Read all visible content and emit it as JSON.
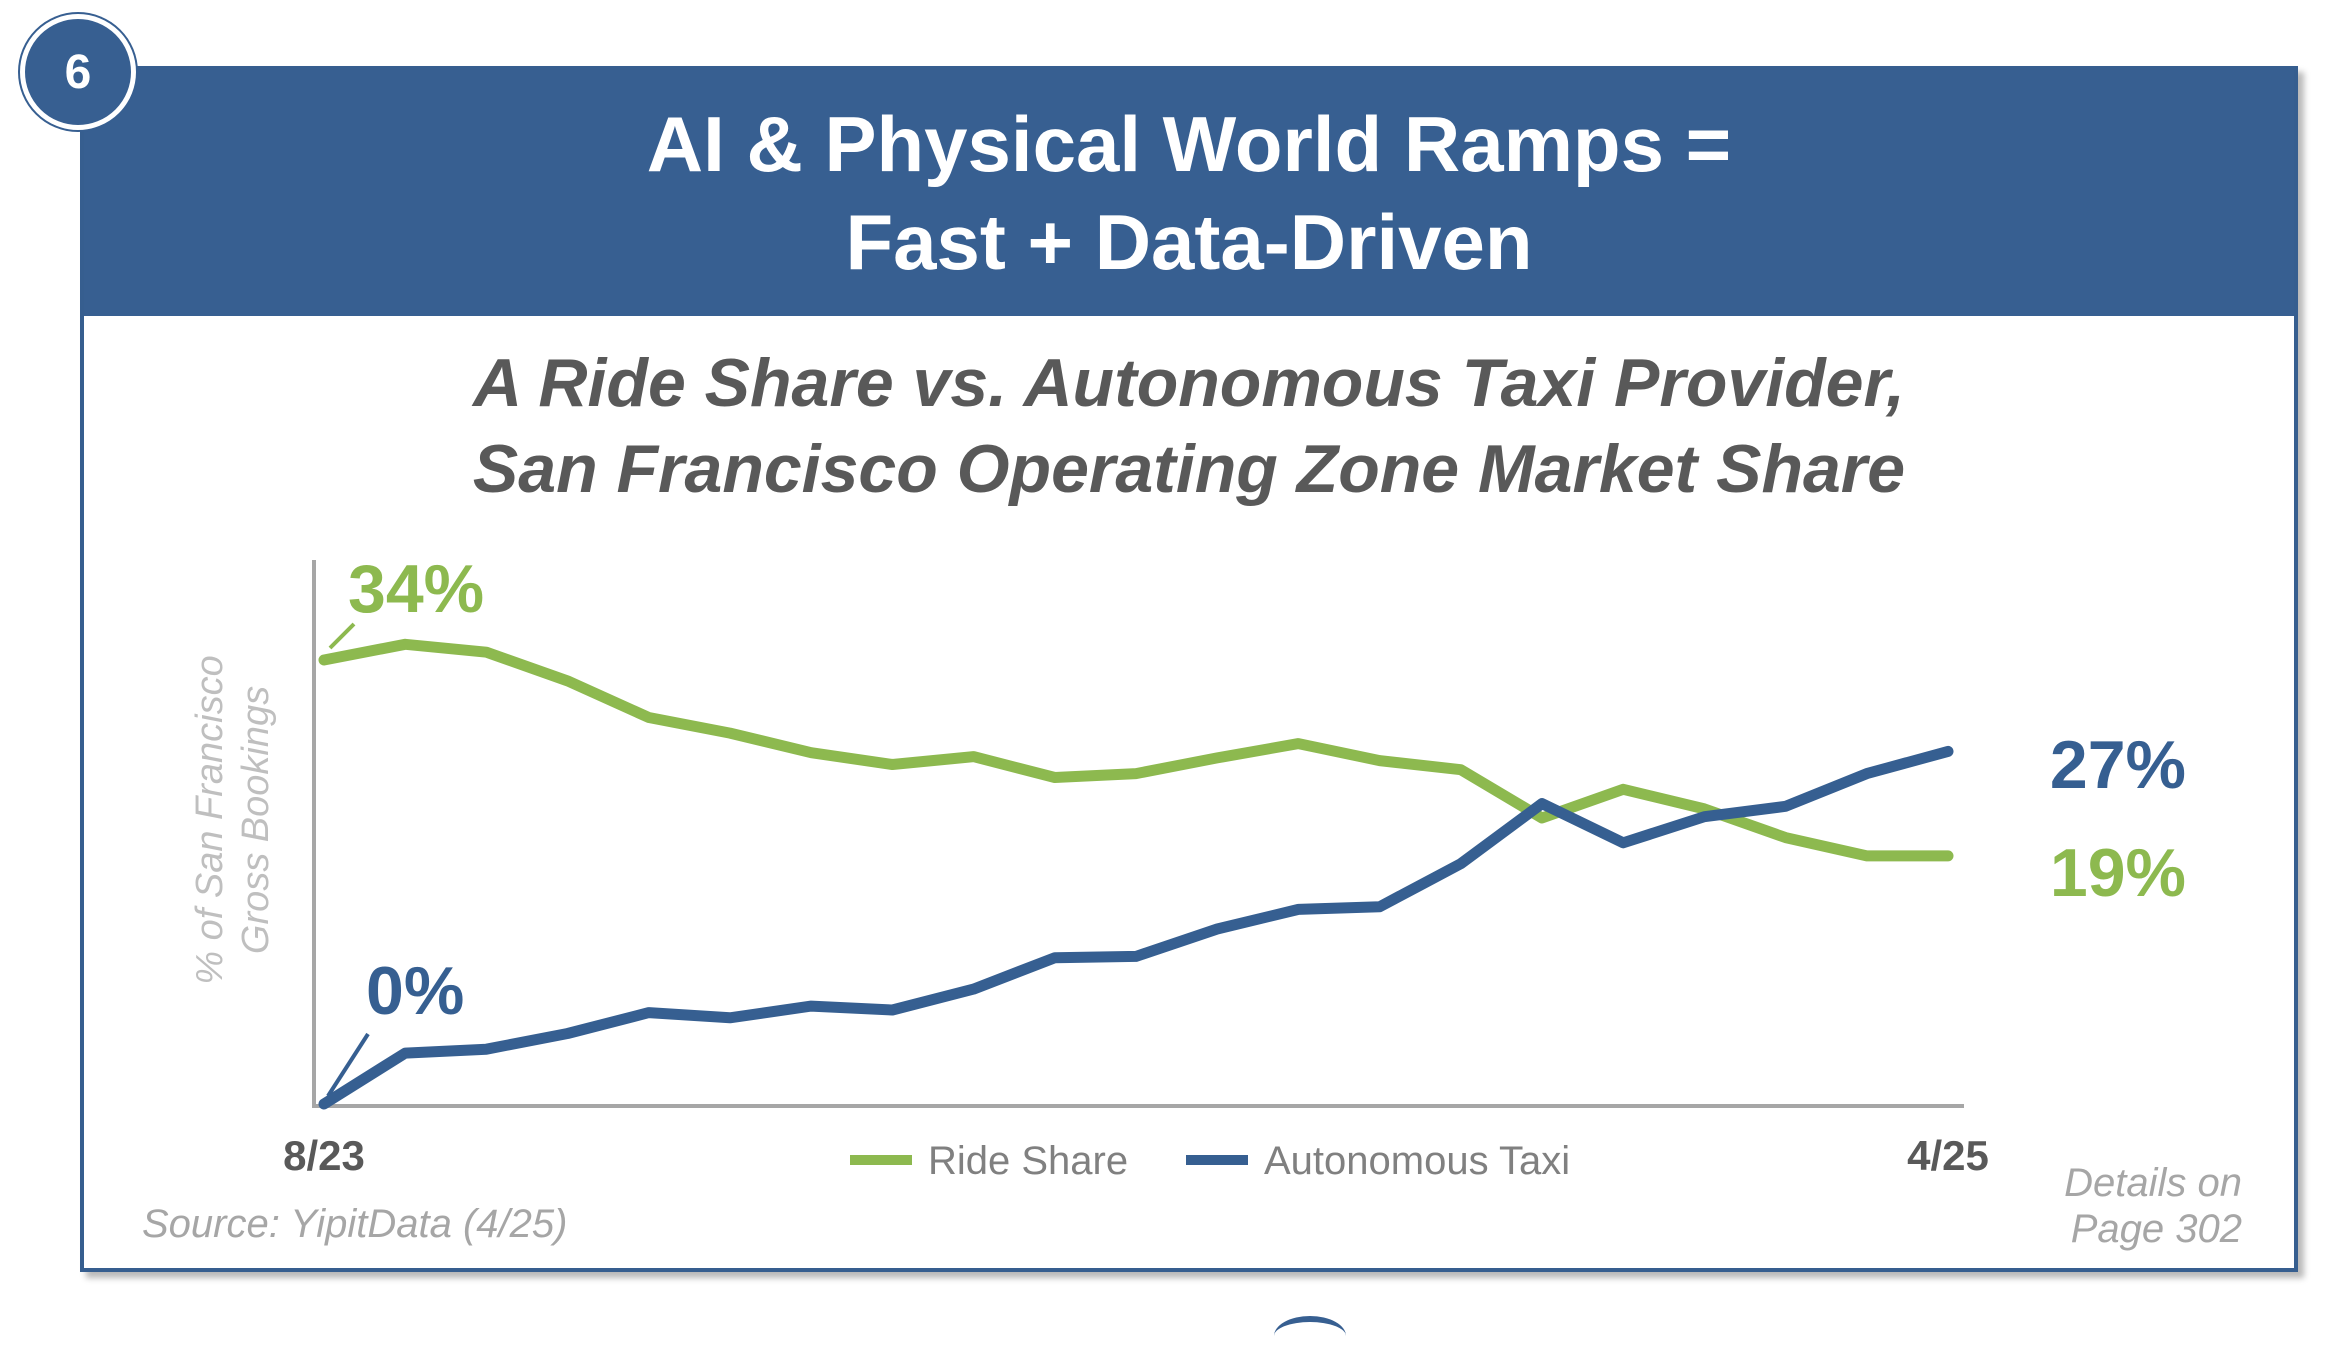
{
  "badge": "6",
  "header": {
    "title_line1": "AI & Physical World Ramps =",
    "title_line2": "Fast + Data-Driven"
  },
  "chart_data": {
    "type": "line",
    "title_line1": "A Ride Share vs. Autonomous Taxi Provider,",
    "title_line2": "San Francisco Operating Zone Market Share",
    "ylabel_line1": "% of San Francisco",
    "ylabel_line2": "Gross Bookings",
    "xlabel": "",
    "x_tick_labels": [
      "8/23",
      "4/25"
    ],
    "x": [
      "8/23",
      "9/23",
      "10/23",
      "11/23",
      "12/23",
      "1/24",
      "2/24",
      "3/24",
      "4/24",
      "5/24",
      "6/24",
      "7/24",
      "8/24",
      "9/24",
      "10/24",
      "11/24",
      "12/24",
      "1/25",
      "2/25",
      "3/25",
      "4/25"
    ],
    "ylim": [
      0,
      34
    ],
    "grid": false,
    "legend_position": "bottom-center",
    "series": [
      {
        "name": "Ride Share",
        "color": "#8db94f",
        "values": [
          34.0,
          35.2,
          34.6,
          32.4,
          29.6,
          28.4,
          26.9,
          26.0,
          26.6,
          25.0,
          25.3,
          26.5,
          27.6,
          26.3,
          25.6,
          21.9,
          24.1,
          22.6,
          20.4,
          19.0,
          19.0
        ],
        "start_label": "34%",
        "end_label": "19%"
      },
      {
        "name": "Autonomous Taxi",
        "color": "#365f91",
        "values": [
          0.0,
          3.9,
          4.2,
          5.4,
          7.0,
          6.6,
          7.5,
          7.2,
          8.8,
          11.2,
          11.3,
          13.4,
          14.9,
          15.1,
          18.4,
          23.0,
          20.0,
          22.0,
          22.8,
          25.3,
          27.0
        ],
        "start_label": "0%",
        "end_label": "27%"
      }
    ]
  },
  "footer": {
    "source": "Source: YipitData (4/25)",
    "details_line1": "Details on",
    "details_line2": "Page 302"
  }
}
